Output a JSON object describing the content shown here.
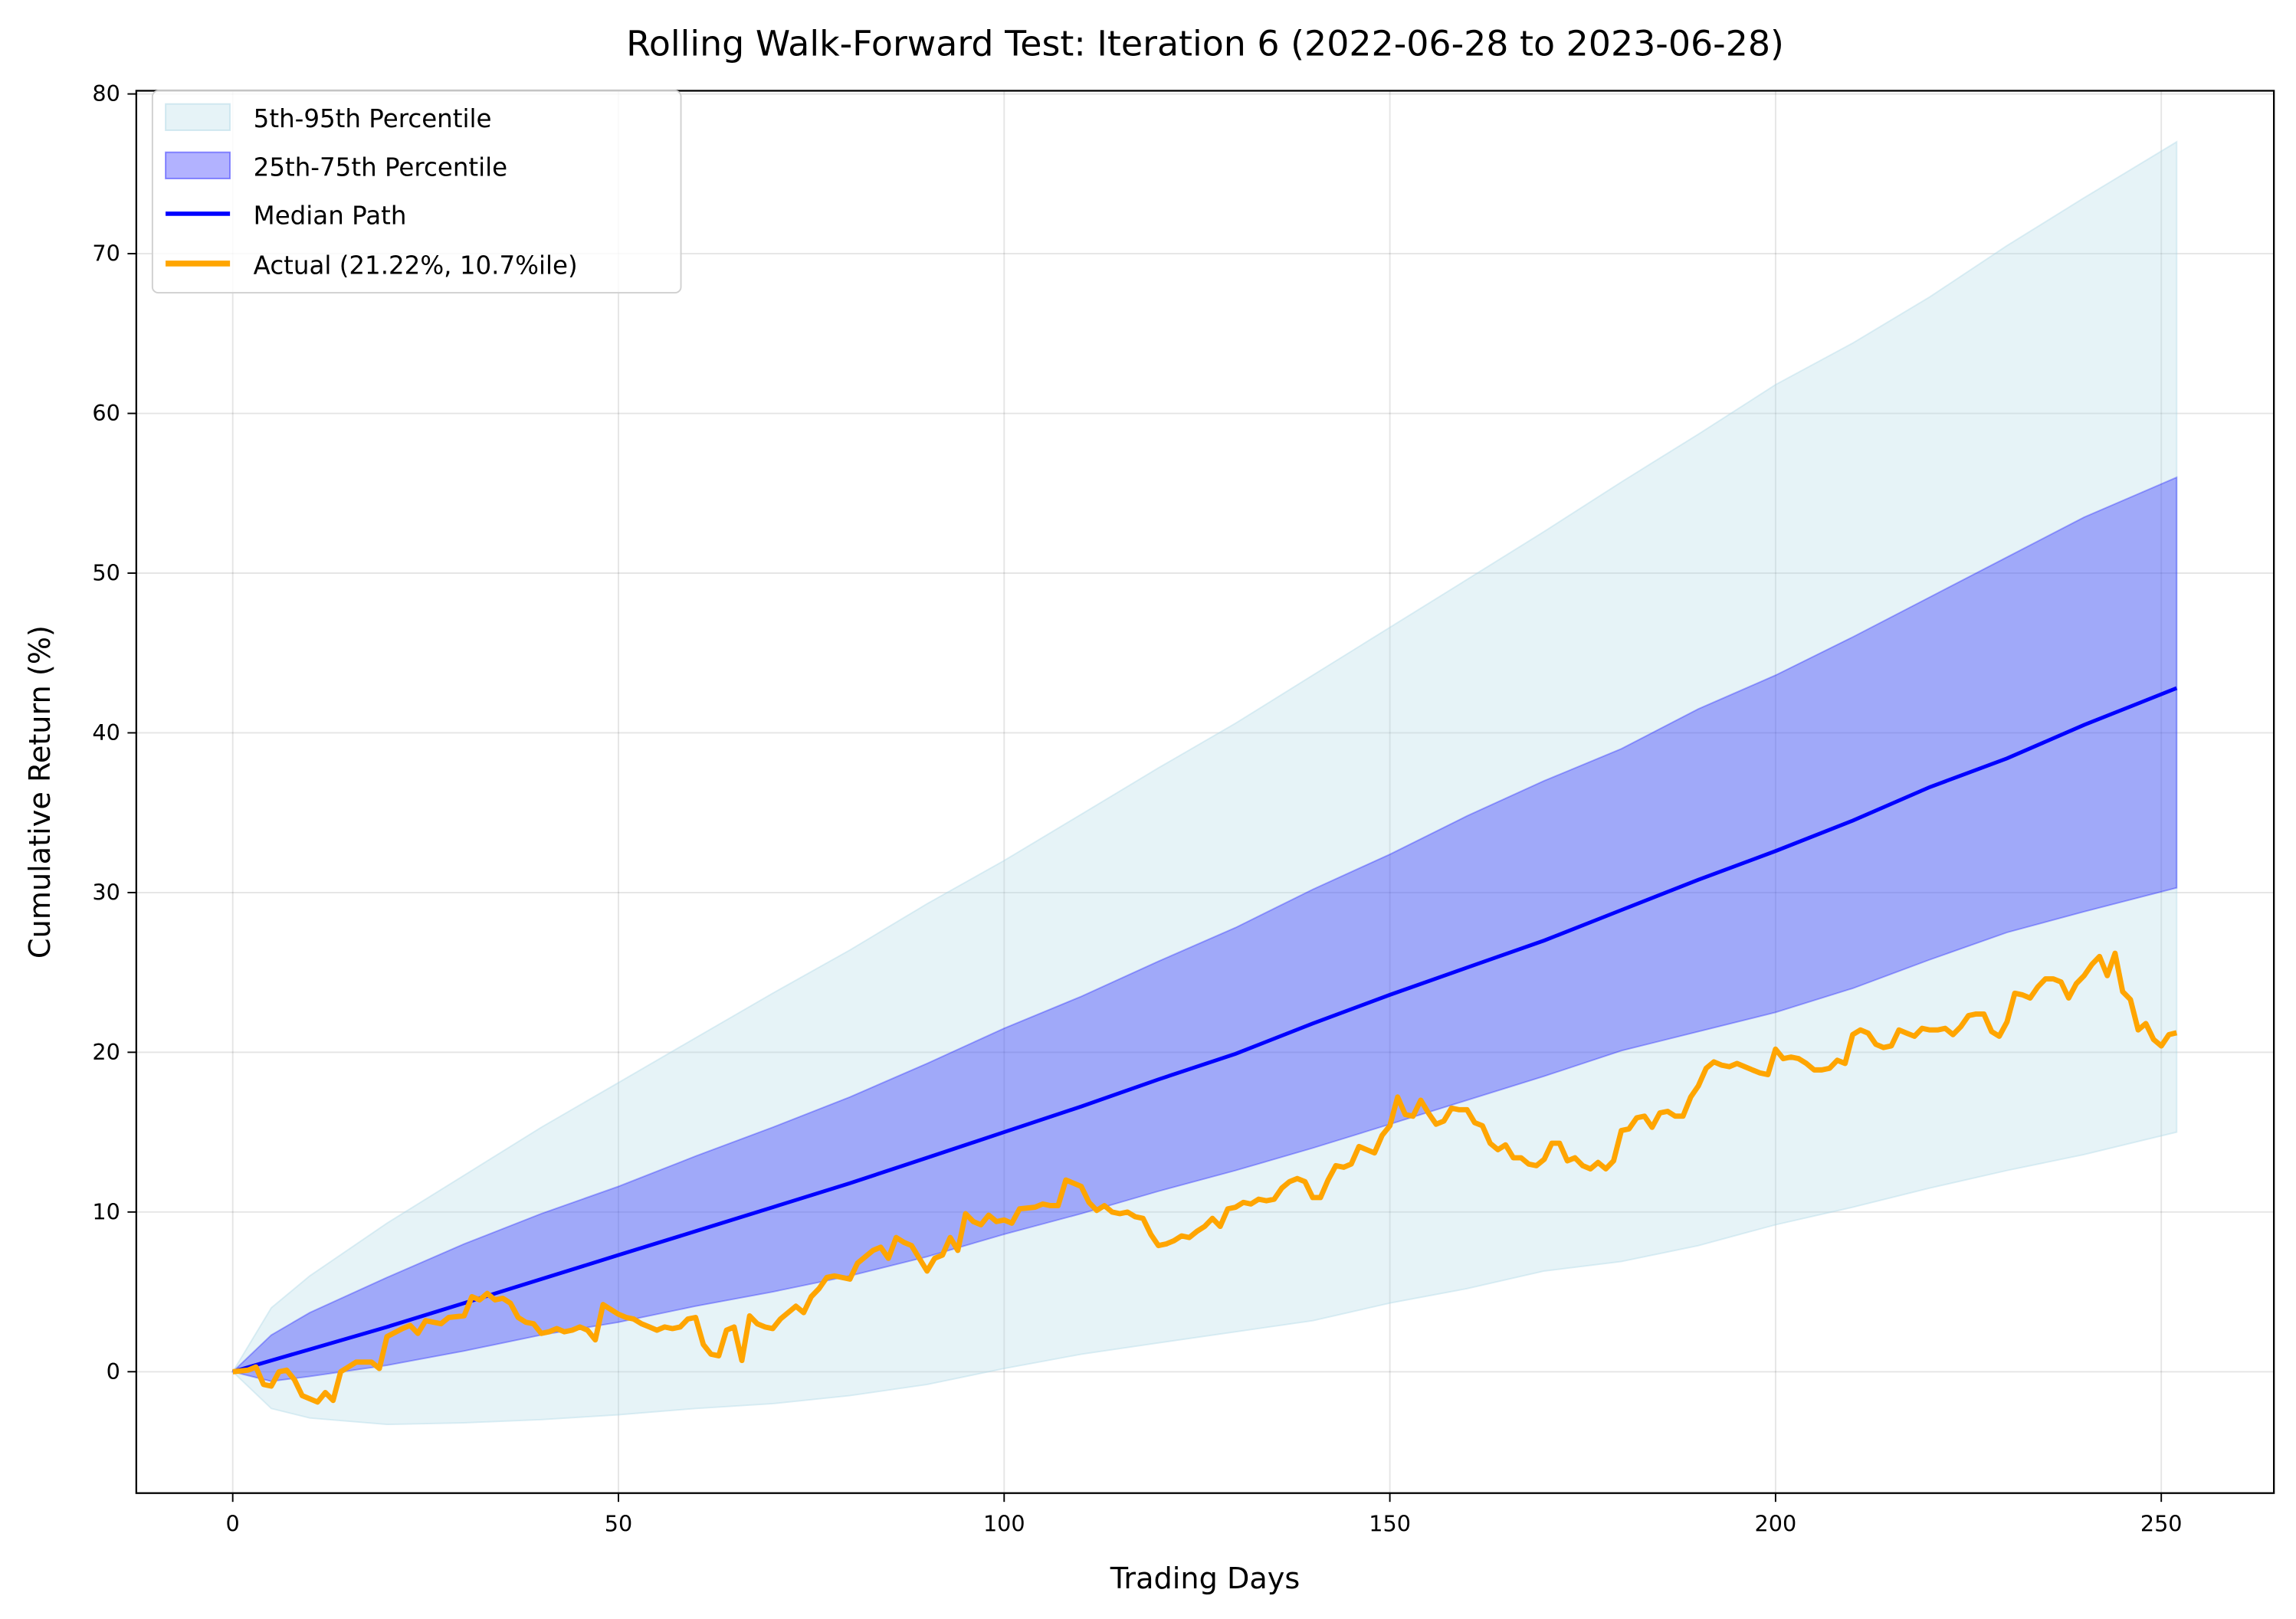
{
  "chart_data": {
    "type": "line",
    "title": "Rolling Walk-Forward Test: Iteration 6 (2022-06-28 to 2023-06-28)",
    "xlabel": "Trading Days",
    "ylabel": "Cumulative Return (%)",
    "xlim": [
      -12.5,
      264.6
    ],
    "ylim": [
      -7.6,
      80.2
    ],
    "xticks": [
      0,
      50,
      100,
      150,
      200,
      250
    ],
    "yticks": [
      0,
      10,
      20,
      30,
      40,
      50,
      60,
      70,
      80
    ],
    "grid": true,
    "legend_position": "top-left",
    "legend": [
      {
        "label": "5th-95th Percentile",
        "kind": "band",
        "color": "#add8e6"
      },
      {
        "label": "25th-75th Percentile",
        "kind": "band",
        "color": "#0000ff"
      },
      {
        "label": "Median Path",
        "kind": "line",
        "color": "#0000ff"
      },
      {
        "label": "Actual (21.22%, 10.7%ile)",
        "kind": "line",
        "color": "#ffa500"
      }
    ],
    "band_x": [
      0,
      5,
      10,
      20,
      30,
      40,
      50,
      60,
      70,
      80,
      90,
      100,
      110,
      120,
      130,
      140,
      150,
      160,
      170,
      180,
      190,
      200,
      210,
      220,
      230,
      240,
      252
    ],
    "p95": [
      0,
      4.0,
      6.0,
      9.3,
      12.3,
      15.3,
      18.1,
      20.9,
      23.7,
      26.4,
      29.3,
      32.0,
      34.9,
      37.8,
      40.6,
      43.6,
      46.6,
      49.6,
      52.6,
      55.7,
      58.7,
      61.8,
      64.4,
      67.3,
      70.5,
      73.5,
      77.0
    ],
    "p75": [
      0,
      2.3,
      3.7,
      5.9,
      8.0,
      9.9,
      11.6,
      13.5,
      15.3,
      17.2,
      19.3,
      21.5,
      23.5,
      25.7,
      27.8,
      30.2,
      32.4,
      34.8,
      37.0,
      39.0,
      41.5,
      43.6,
      46.0,
      48.5,
      51.0,
      53.5,
      56.0
    ],
    "median": [
      0,
      0.7,
      1.4,
      2.8,
      4.3,
      5.8,
      7.3,
      8.8,
      10.3,
      11.8,
      13.4,
      15.0,
      16.6,
      18.3,
      19.9,
      21.8,
      23.6,
      25.3,
      27.0,
      28.9,
      30.8,
      32.6,
      34.5,
      36.6,
      38.4,
      40.5,
      42.8
    ],
    "p25": [
      0,
      -0.6,
      -0.3,
      0.4,
      1.3,
      2.3,
      3.1,
      4.1,
      5.0,
      6.0,
      7.2,
      8.6,
      9.9,
      11.3,
      12.6,
      14.0,
      15.5,
      17.0,
      18.5,
      20.1,
      21.3,
      22.5,
      24.0,
      25.8,
      27.5,
      28.8,
      30.3
    ],
    "p5": [
      0,
      -2.3,
      -2.9,
      -3.3,
      -3.2,
      -3.0,
      -2.7,
      -2.3,
      -2.0,
      -1.5,
      -0.8,
      0.2,
      1.1,
      1.8,
      2.5,
      3.2,
      4.3,
      5.2,
      6.3,
      6.9,
      7.9,
      9.2,
      10.3,
      11.5,
      12.6,
      13.6,
      15.0
    ],
    "actual": [
      [
        0,
        0
      ],
      [
        2,
        0.1
      ],
      [
        3,
        0.3
      ],
      [
        4,
        -0.8
      ],
      [
        5,
        -0.9
      ],
      [
        6,
        0
      ],
      [
        7,
        0.1
      ],
      [
        8,
        -0.5
      ],
      [
        9,
        -1.5
      ],
      [
        11,
        -1.9
      ],
      [
        12,
        -1.3
      ],
      [
        13,
        -1.8
      ],
      [
        14,
        0
      ],
      [
        15,
        0.3
      ],
      [
        16,
        0.6
      ],
      [
        18,
        0.6
      ],
      [
        19,
        0.2
      ],
      [
        20,
        2.2
      ],
      [
        22,
        2.7
      ],
      [
        23,
        2.9
      ],
      [
        24,
        2.4
      ],
      [
        25,
        3.2
      ],
      [
        27,
        3.0
      ],
      [
        28,
        3.4
      ],
      [
        30,
        3.5
      ],
      [
        31,
        4.7
      ],
      [
        32,
        4.5
      ],
      [
        33,
        4.9
      ],
      [
        34,
        4.5
      ],
      [
        35,
        4.6
      ],
      [
        36,
        4.3
      ],
      [
        37,
        3.4
      ],
      [
        38,
        3.1
      ],
      [
        39,
        3.0
      ],
      [
        40,
        2.4
      ],
      [
        41,
        2.5
      ],
      [
        42,
        2.7
      ],
      [
        43,
        2.5
      ],
      [
        44,
        2.6
      ],
      [
        45,
        2.8
      ],
      [
        46,
        2.6
      ],
      [
        47,
        2.0
      ],
      [
        48,
        4.2
      ],
      [
        49,
        3.9
      ],
      [
        50,
        3.6
      ],
      [
        51,
        3.4
      ],
      [
        52,
        3.3
      ],
      [
        53,
        3.0
      ],
      [
        54,
        2.8
      ],
      [
        55,
        2.6
      ],
      [
        56,
        2.8
      ],
      [
        57,
        2.7
      ],
      [
        58,
        2.8
      ],
      [
        59,
        3.3
      ],
      [
        60,
        3.4
      ],
      [
        61,
        1.7
      ],
      [
        62,
        1.1
      ],
      [
        63,
        1.0
      ],
      [
        64,
        2.6
      ],
      [
        65,
        2.8
      ],
      [
        66,
        0.7
      ],
      [
        67,
        3.5
      ],
      [
        68,
        3.0
      ],
      [
        69,
        2.8
      ],
      [
        70,
        2.7
      ],
      [
        71,
        3.3
      ],
      [
        72,
        3.7
      ],
      [
        73,
        4.1
      ],
      [
        74,
        3.7
      ],
      [
        75,
        4.7
      ],
      [
        76,
        5.2
      ],
      [
        77,
        5.9
      ],
      [
        78,
        6.0
      ],
      [
        80,
        5.8
      ],
      [
        81,
        6.8
      ],
      [
        83,
        7.6
      ],
      [
        84,
        7.8
      ],
      [
        85,
        7.1
      ],
      [
        86,
        8.4
      ],
      [
        87,
        8.1
      ],
      [
        88,
        7.9
      ],
      [
        89,
        7.1
      ],
      [
        90,
        6.3
      ],
      [
        91,
        7.1
      ],
      [
        92,
        7.3
      ],
      [
        93,
        8.4
      ],
      [
        94,
        7.6
      ],
      [
        95,
        9.9
      ],
      [
        96,
        9.4
      ],
      [
        97,
        9.2
      ],
      [
        98,
        9.8
      ],
      [
        99,
        9.4
      ],
      [
        100,
        9.5
      ],
      [
        101,
        9.3
      ],
      [
        102,
        10.2
      ],
      [
        104,
        10.3
      ],
      [
        105,
        10.5
      ],
      [
        106,
        10.4
      ],
      [
        107,
        10.4
      ],
      [
        108,
        12.0
      ],
      [
        109,
        11.8
      ],
      [
        110,
        11.6
      ],
      [
        111,
        10.6
      ],
      [
        112,
        10.1
      ],
      [
        113,
        10.4
      ],
      [
        114,
        10.0
      ],
      [
        115,
        9.9
      ],
      [
        116,
        10.0
      ],
      [
        117,
        9.7
      ],
      [
        118,
        9.6
      ],
      [
        119,
        8.6
      ],
      [
        120,
        7.9
      ],
      [
        121,
        8.0
      ],
      [
        122,
        8.2
      ],
      [
        123,
        8.5
      ],
      [
        124,
        8.4
      ],
      [
        125,
        8.8
      ],
      [
        126,
        9.1
      ],
      [
        127,
        9.6
      ],
      [
        128,
        9.1
      ],
      [
        129,
        10.2
      ],
      [
        130,
        10.3
      ],
      [
        131,
        10.6
      ],
      [
        132,
        10.5
      ],
      [
        133,
        10.8
      ],
      [
        134,
        10.7
      ],
      [
        135,
        10.8
      ],
      [
        136,
        11.5
      ],
      [
        137,
        11.9
      ],
      [
        138,
        12.1
      ],
      [
        139,
        11.9
      ],
      [
        140,
        10.9
      ],
      [
        141,
        10.9
      ],
      [
        142,
        12.0
      ],
      [
        143,
        12.9
      ],
      [
        144,
        12.8
      ],
      [
        145,
        13.0
      ],
      [
        146,
        14.1
      ],
      [
        147,
        13.9
      ],
      [
        148,
        13.7
      ],
      [
        149,
        14.8
      ],
      [
        150,
        15.4
      ],
      [
        151,
        17.2
      ],
      [
        152,
        16.1
      ],
      [
        153,
        16.0
      ],
      [
        154,
        17.0
      ],
      [
        155,
        16.2
      ],
      [
        156,
        15.5
      ],
      [
        157,
        15.7
      ],
      [
        158,
        16.5
      ],
      [
        159,
        16.4
      ],
      [
        160,
        16.4
      ],
      [
        161,
        15.6
      ],
      [
        162,
        15.4
      ],
      [
        163,
        14.3
      ],
      [
        164,
        13.9
      ],
      [
        165,
        14.2
      ],
      [
        166,
        13.4
      ],
      [
        167,
        13.4
      ],
      [
        168,
        13.0
      ],
      [
        169,
        12.9
      ],
      [
        170,
        13.3
      ],
      [
        171,
        14.3
      ],
      [
        172,
        14.3
      ],
      [
        173,
        13.2
      ],
      [
        174,
        13.4
      ],
      [
        175,
        12.9
      ],
      [
        176,
        12.7
      ],
      [
        177,
        13.1
      ],
      [
        178,
        12.7
      ],
      [
        179,
        13.2
      ],
      [
        180,
        15.1
      ],
      [
        181,
        15.2
      ],
      [
        182,
        15.9
      ],
      [
        183,
        16.0
      ],
      [
        184,
        15.3
      ],
      [
        185,
        16.2
      ],
      [
        186,
        16.3
      ],
      [
        187,
        16.0
      ],
      [
        188,
        16.0
      ],
      [
        189,
        17.2
      ],
      [
        190,
        17.9
      ],
      [
        191,
        19.0
      ],
      [
        192,
        19.4
      ],
      [
        193,
        19.2
      ],
      [
        194,
        19.1
      ],
      [
        195,
        19.3
      ],
      [
        196,
        19.1
      ],
      [
        197,
        18.9
      ],
      [
        198,
        18.7
      ],
      [
        199,
        18.6
      ],
      [
        200,
        20.2
      ],
      [
        201,
        19.6
      ],
      [
        202,
        19.7
      ],
      [
        203,
        19.6
      ],
      [
        204,
        19.3
      ],
      [
        205,
        18.9
      ],
      [
        206,
        18.9
      ],
      [
        207,
        19.0
      ],
      [
        208,
        19.5
      ],
      [
        209,
        19.3
      ],
      [
        210,
        21.1
      ],
      [
        211,
        21.4
      ],
      [
        212,
        21.2
      ],
      [
        213,
        20.5
      ],
      [
        214,
        20.3
      ],
      [
        215,
        20.4
      ],
      [
        216,
        21.4
      ],
      [
        217,
        21.2
      ],
      [
        218,
        21.0
      ],
      [
        219,
        21.5
      ],
      [
        220,
        21.4
      ],
      [
        221,
        21.4
      ],
      [
        222,
        21.5
      ],
      [
        223,
        21.1
      ],
      [
        224,
        21.6
      ],
      [
        225,
        22.3
      ],
      [
        226,
        22.4
      ],
      [
        227,
        22.4
      ],
      [
        228,
        21.3
      ],
      [
        229,
        21.0
      ],
      [
        230,
        21.9
      ],
      [
        231,
        23.7
      ],
      [
        232,
        23.6
      ],
      [
        233,
        23.4
      ],
      [
        234,
        24.1
      ],
      [
        235,
        24.6
      ],
      [
        236,
        24.6
      ],
      [
        237,
        24.4
      ],
      [
        238,
        23.4
      ],
      [
        239,
        24.3
      ],
      [
        240,
        24.8
      ],
      [
        241,
        25.5
      ],
      [
        242,
        26.0
      ],
      [
        243,
        24.8
      ],
      [
        244,
        26.2
      ],
      [
        245,
        23.8
      ],
      [
        246,
        23.3
      ],
      [
        247,
        21.4
      ],
      [
        248,
        21.8
      ],
      [
        249,
        20.8
      ],
      [
        250,
        20.4
      ],
      [
        251,
        21.1
      ],
      [
        252,
        21.22
      ]
    ]
  }
}
